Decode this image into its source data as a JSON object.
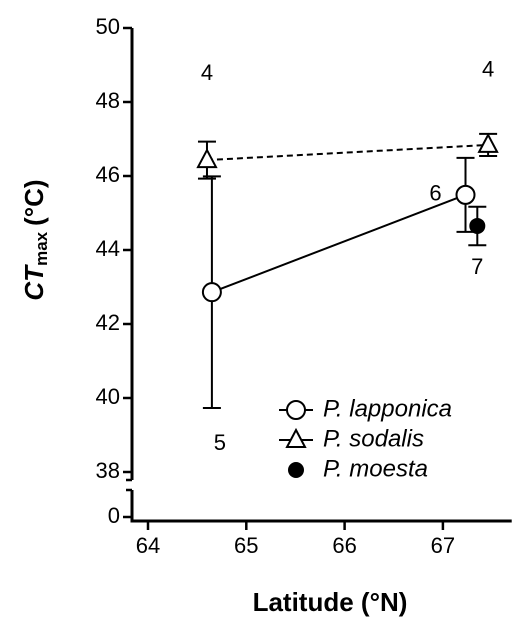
{
  "chart_data": {
    "type": "scatter",
    "xlabel": "Latitude (°N)",
    "ylabel": {
      "main": "CT",
      "sub": "max",
      "unit": "(°C)"
    },
    "xlim": [
      64,
      67.7
    ],
    "xticks": [
      64,
      65,
      66,
      67
    ],
    "ylim": [
      0,
      50
    ],
    "axis_break": [
      0,
      38
    ],
    "yticks": [
      0,
      38,
      40,
      42,
      44,
      46,
      48,
      50
    ],
    "legend": "lower right",
    "series": [
      {
        "name": "P. lapponica",
        "marker": "open-circle",
        "line": "solid",
        "color": "#000000",
        "x": [
          64.65,
          67.23
        ],
        "values": [
          42.86,
          45.49
        ],
        "yerr": [
          3.13,
          1.0
        ],
        "sample_sizes": [
          5,
          6
        ]
      },
      {
        "name": "P. sodalis",
        "marker": "open-triangle",
        "line": "dashed",
        "color": "#000000",
        "x": [
          64.6,
          67.46
        ],
        "values": [
          46.43,
          46.84
        ],
        "yerr": [
          0.5,
          0.3
        ],
        "sample_sizes": [
          4,
          4
        ]
      },
      {
        "name": "P. moesta",
        "marker": "filled-circle",
        "line": "none",
        "color": "#000000",
        "x": [
          67.35
        ],
        "values": [
          44.65
        ],
        "yerr": [
          0.52
        ],
        "sample_sizes": [
          7
        ]
      }
    ]
  }
}
